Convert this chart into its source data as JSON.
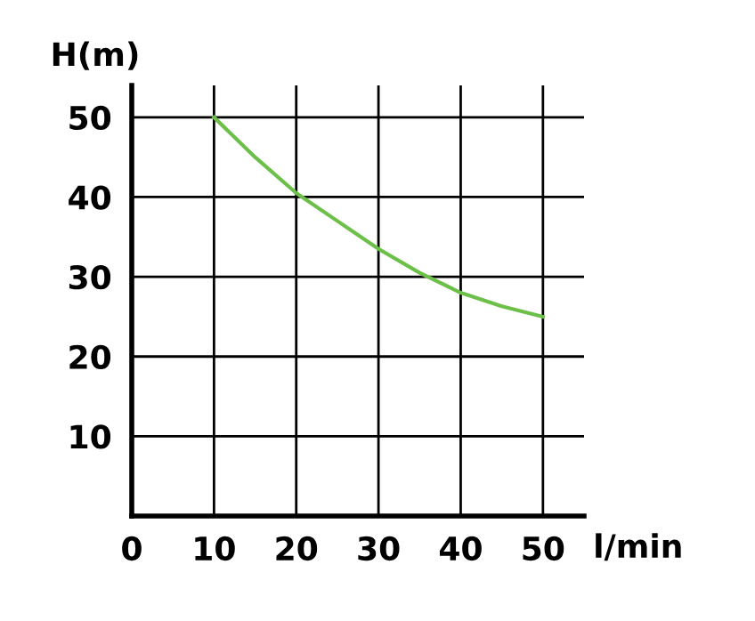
{
  "chart_data": {
    "type": "line",
    "xlabel": "l/min",
    "ylabel": "H(m)",
    "x": [
      10,
      15,
      20,
      25,
      30,
      35,
      40,
      45,
      50
    ],
    "series": [
      {
        "color": "#6cc04a",
        "values": [
          50,
          45,
          40.5,
          37,
          33.5,
          30.5,
          28,
          26.3,
          25
        ]
      }
    ],
    "xlim": [
      0,
      55
    ],
    "ylim": [
      0,
      54
    ],
    "xticks": [
      0,
      10,
      20,
      30,
      40,
      50
    ],
    "yticks": [
      10,
      20,
      30,
      40,
      50
    ],
    "grid": true,
    "marker": "none",
    "line_style": "solid"
  }
}
